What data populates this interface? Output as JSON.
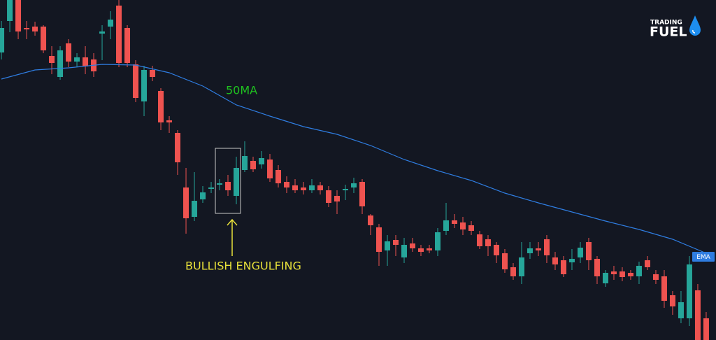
{
  "chart_data": {
    "type": "candlestick",
    "annotations": [
      "50MA",
      "BULLISH ENGULFING"
    ],
    "logo": {
      "top": "TRADING",
      "bottom": "FUEL"
    },
    "up_color": "#26a69a",
    "down_color": "#ef5350",
    "ylim": [
      0,
      486
    ],
    "xlim": [
      -0.17,
      85.17
    ],
    "open": [
      411,
      456,
      486,
      446,
      448,
      448,
      406,
      376,
      424,
      398,
      404,
      401,
      438,
      448,
      478,
      446,
      394,
      341,
      386,
      356,
      314,
      296,
      218,
      176,
      201,
      216,
      222,
      226,
      206,
      243,
      256,
      251,
      258,
      243,
      226,
      221,
      218,
      214,
      221,
      214,
      206,
      214,
      218,
      226,
      178,
      161,
      128,
      143,
      118,
      138,
      131,
      131,
      128,
      156,
      171,
      168,
      164,
      151,
      144,
      136,
      124,
      104,
      91,
      124,
      131,
      144,
      118,
      114,
      111,
      118,
      140,
      116,
      81,
      98,
      98,
      96,
      91,
      114,
      94,
      91,
      64,
      31,
      31,
      71,
      31
    ],
    "high": [
      456,
      486,
      486,
      456,
      455,
      450,
      420,
      420,
      430,
      410,
      420,
      410,
      450,
      470,
      486,
      450,
      400,
      392,
      392,
      360,
      320,
      300,
      246,
      240,
      220,
      226,
      230,
      236,
      262,
      284,
      262,
      270,
      266,
      250,
      234,
      230,
      226,
      230,
      226,
      220,
      214,
      222,
      232,
      230,
      180,
      166,
      150,
      150,
      146,
      146,
      136,
      136,
      160,
      196,
      180,
      176,
      170,
      156,
      150,
      140,
      130,
      110,
      140,
      140,
      140,
      150,
      126,
      120,
      130,
      140,
      146,
      120,
      100,
      106,
      104,
      100,
      112,
      120,
      100,
      100,
      70,
      70,
      120,
      80,
      40
    ],
    "low": [
      401,
      440,
      430,
      430,
      435,
      410,
      380,
      372,
      390,
      390,
      380,
      376,
      400,
      430,
      390,
      390,
      340,
      320,
      370,
      300,
      296,
      236,
      152,
      170,
      196,
      210,
      214,
      206,
      194,
      240,
      240,
      245,
      226,
      218,
      210,
      210,
      208,
      210,
      208,
      190,
      180,
      200,
      210,
      180,
      150,
      106,
      106,
      120,
      110,
      126,
      120,
      124,
      120,
      150,
      160,
      150,
      150,
      130,
      120,
      110,
      96,
      86,
      80,
      116,
      120,
      110,
      100,
      90,
      100,
      110,
      100,
      80,
      76,
      86,
      84,
      86,
      80,
      100,
      80,
      46,
      36,
      24,
      20,
      0,
      0
    ],
    "close": [
      446,
      486,
      441,
      444,
      441,
      414,
      396,
      414,
      398,
      404,
      391,
      384,
      441,
      458,
      396,
      396,
      346,
      386,
      376,
      311,
      311,
      254,
      174,
      199,
      211,
      218,
      224,
      214,
      246,
      263,
      244,
      260,
      231,
      224,
      218,
      214,
      214,
      221,
      214,
      196,
      198,
      216,
      224,
      191,
      164,
      126,
      141,
      136,
      136,
      131,
      126,
      128,
      154,
      171,
      166,
      158,
      156,
      134,
      134,
      121,
      101,
      91,
      118,
      131,
      128,
      121,
      108,
      94,
      116,
      132,
      114,
      91,
      96,
      94,
      90,
      91,
      106,
      104,
      86,
      56,
      48,
      54,
      108,
      0,
      0
    ],
    "series": [
      {
        "name": "EMA",
        "color": "#2f7de1",
        "x": [
          0,
          4,
          8,
          12,
          16,
          20,
          24,
          28,
          32,
          36,
          40,
          44,
          48,
          52,
          56,
          60,
          64,
          68,
          72,
          76,
          80,
          84
        ],
        "values": [
          373,
          386,
          389,
          394,
          393,
          382,
          363,
          336,
          320,
          305,
          294,
          278,
          258,
          242,
          228,
          210,
          196,
          183,
          170,
          158,
          144,
          124
        ]
      }
    ]
  }
}
